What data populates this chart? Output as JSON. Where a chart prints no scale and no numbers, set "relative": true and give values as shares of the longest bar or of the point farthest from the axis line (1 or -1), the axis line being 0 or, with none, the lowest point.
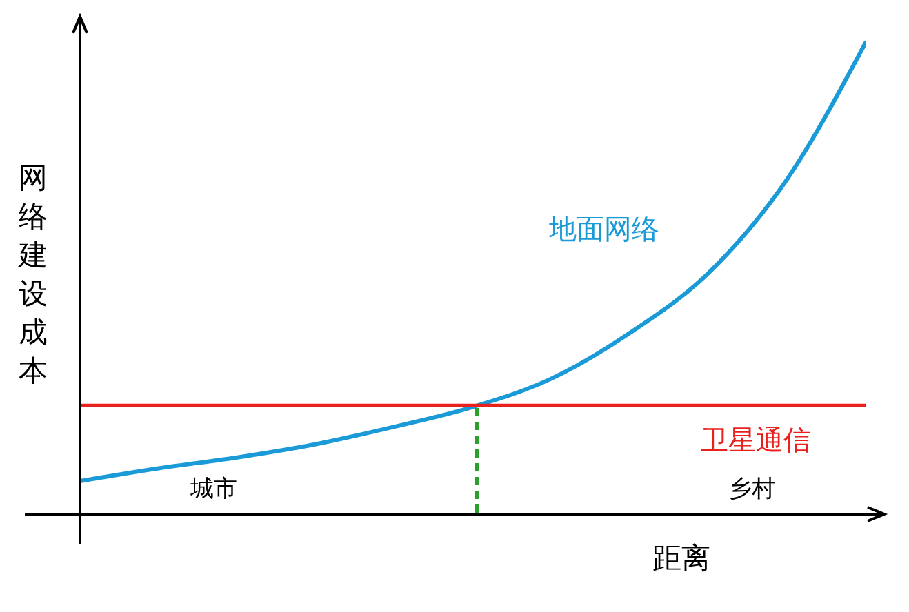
{
  "chart_data": {
    "type": "line",
    "relative": true,
    "xlabel": "距离",
    "ylabel": "网络建设成本",
    "marker": "none",
    "categories": [
      null,
      null,
      null,
      null,
      null,
      null,
      null,
      null,
      null,
      null,
      null
    ],
    "series": [
      {
        "name": "地面网络",
        "color": "#1a9ad6",
        "values": [
          0.07,
          0.097,
          0.12,
          0.148,
          0.185,
          0.227,
          0.287,
          0.384,
          0.511,
          0.71,
          1
        ]
      },
      {
        "name": "卫星通信",
        "color": "#e8211c",
        "values": [
          0.23,
          0.23,
          0.23,
          0.23,
          0.23,
          0.23,
          0.23,
          0.23,
          0.23,
          0.23,
          0.23
        ]
      }
    ],
    "annotations": [
      "城市",
      "乡村"
    ]
  }
}
